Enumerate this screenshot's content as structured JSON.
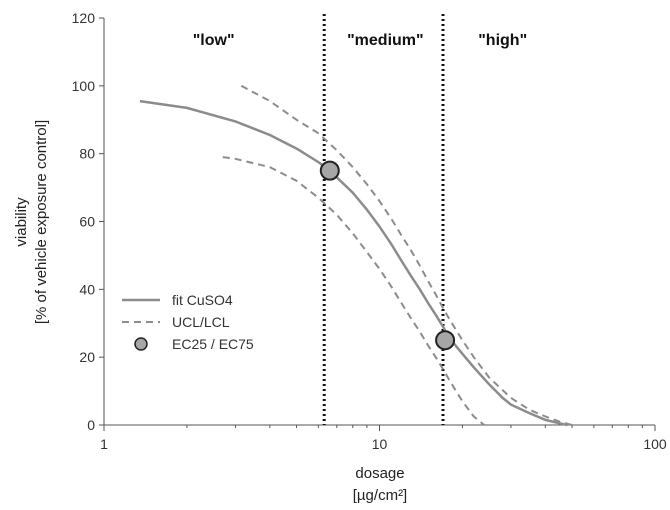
{
  "chart_data": {
    "type": "line",
    "xscale": "log",
    "xlim": [
      1,
      100
    ],
    "ylim": [
      0,
      120
    ],
    "x_ticks": [
      "1",
      "10",
      "100"
    ],
    "y_ticks": [
      "0",
      "20",
      "40",
      "60",
      "80",
      "100",
      "120"
    ],
    "xlabel": [
      "dosage",
      "[µg/cm²]"
    ],
    "ylabel": [
      "viability",
      "[% of vehicle exposure control]"
    ],
    "grid": false,
    "legend_position": "left-lower",
    "colors": {
      "fit": "#8c8c8c",
      "ci": "#8c8c8c",
      "marker_fill": "#a6a6a6",
      "marker_stroke": "#222222",
      "divider": "#111111"
    },
    "series": [
      {
        "name": "fit CuSO4",
        "style": "solid",
        "x": [
          1.35,
          2,
          3,
          4,
          5,
          6,
          6.6,
          7,
          8,
          9,
          10,
          11,
          12,
          13,
          14,
          15,
          16,
          17,
          18,
          20,
          22,
          25,
          28,
          30,
          35,
          40,
          45,
          48
        ],
        "y": [
          95.5,
          93.5,
          89.5,
          85.5,
          81.5,
          77.5,
          75,
          73,
          68.5,
          63.5,
          58.5,
          53.5,
          48.5,
          44,
          40,
          36,
          32.5,
          29,
          25.5,
          21,
          17,
          12,
          8,
          6,
          3.5,
          1.5,
          0.5,
          0
        ]
      },
      {
        "name": "UCL",
        "style": "dashed",
        "x": [
          3.15,
          4,
          5,
          6,
          7,
          8,
          9,
          10,
          11,
          12,
          13,
          14,
          15,
          16,
          17,
          18,
          20,
          22,
          25,
          30,
          35,
          40,
          45,
          50
        ],
        "y": [
          100,
          95.5,
          90,
          86,
          81,
          76,
          71,
          66,
          61,
          56,
          51.5,
          47,
          42.5,
          38.5,
          34.5,
          31,
          25,
          20,
          14,
          8,
          4.5,
          2.5,
          1,
          0
        ]
      },
      {
        "name": "LCL",
        "style": "dashed",
        "x": [
          2.7,
          3,
          4,
          5,
          6,
          7,
          8,
          9,
          10,
          11,
          12,
          13,
          14,
          15,
          16,
          17,
          18,
          20,
          22,
          24
        ],
        "y": [
          79,
          78.5,
          76,
          72,
          67,
          62,
          56.5,
          51,
          46,
          41,
          36,
          31.5,
          27.5,
          23.5,
          20,
          16.5,
          13,
          7,
          2.5,
          0
        ]
      }
    ],
    "points": {
      "name": "EC25 / EC75",
      "x": [
        6.6,
        17.3
      ],
      "y": [
        75,
        25
      ]
    },
    "vertical_lines": {
      "style": "dotted",
      "x": [
        6.3,
        17.0
      ]
    },
    "region_labels": [
      {
        "text": "\"low\"",
        "x": 2.5
      },
      {
        "text": "\"medium\"",
        "x": 10.5
      },
      {
        "text": "\"high\"",
        "x": 28
      }
    ],
    "legend": [
      {
        "label": "fit CuSO4",
        "symbol": "solid-line"
      },
      {
        "label": "UCL/LCL",
        "symbol": "dashed-line"
      },
      {
        "label": "EC25 / EC75",
        "symbol": "circle"
      }
    ]
  }
}
